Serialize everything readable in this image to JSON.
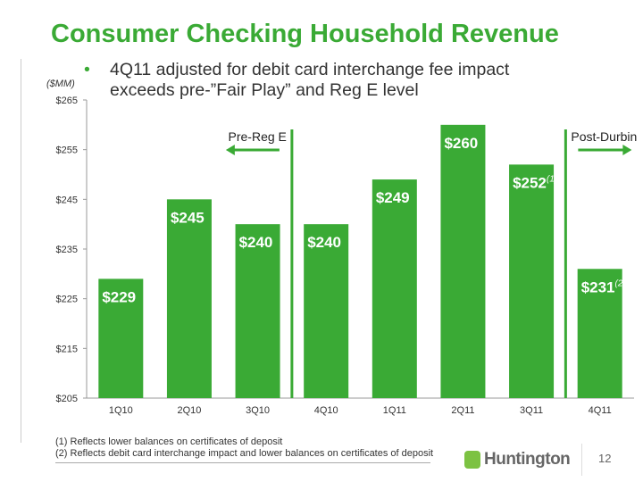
{
  "title": "Consumer Checking Household Revenue",
  "bullet": "4Q11 adjusted for debit card interchange fee impact exceeds pre-”Fair Play” and Reg E level",
  "footnotes": [
    "(1)  Reflects lower balances on certificates of deposit",
    "(2)  Reflects debit card interchange impact and lower balances on certificates of deposit"
  ],
  "logo": "Huntington",
  "page_number": "12",
  "colors": {
    "bar": "#3aaa35",
    "title": "#3aaa35",
    "separator": "#3aaa35"
  },
  "chart_data": {
    "type": "bar",
    "unit_label": "($MM)",
    "categories": [
      "1Q10",
      "2Q10",
      "3Q10",
      "4Q10",
      "1Q11",
      "2Q11",
      "3Q11",
      "4Q11"
    ],
    "values": [
      229,
      245,
      240,
      240,
      249,
      260,
      252,
      231
    ],
    "data_labels": [
      "$229",
      "$245",
      "$240",
      "$240",
      "$249",
      "$260",
      "$252",
      "$231"
    ],
    "label_superscripts": [
      "",
      "",
      "",
      "",
      "",
      "",
      "(1)",
      "(2)"
    ],
    "ylim": [
      205,
      265
    ],
    "yticks": [
      205,
      215,
      225,
      235,
      245,
      255,
      265
    ],
    "ytick_labels": [
      "$205",
      "$215",
      "$225",
      "$235",
      "$245",
      "$255",
      "$265"
    ],
    "annotations": [
      {
        "text": "Pre-Reg E",
        "direction": "left",
        "after_category": "3Q10"
      },
      {
        "text": "Post-Durbin",
        "direction": "right",
        "after_category": "3Q11"
      }
    ]
  }
}
